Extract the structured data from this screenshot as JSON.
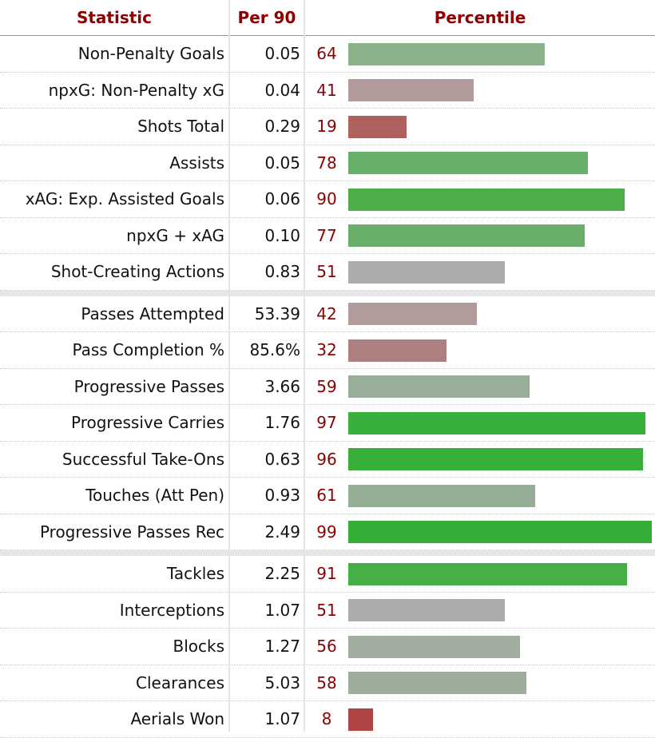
{
  "chart_data": {
    "type": "bar",
    "headers": {
      "statistic": "Statistic",
      "per90": "Per 90",
      "percentile": "Percentile"
    },
    "ylim": [
      0,
      100
    ],
    "groups": [
      {
        "rows": [
          {
            "label": "Non-Penalty Goals",
            "per90": "0.05",
            "percentile": 64,
            "color": "#8cb28c"
          },
          {
            "label": "npxG: Non-Penalty xG",
            "per90": "0.04",
            "percentile": 41,
            "color": "#b19b9b"
          },
          {
            "label": "Shots Total",
            "per90": "0.29",
            "percentile": 19,
            "color": "#ad625e"
          },
          {
            "label": "Assists",
            "per90": "0.05",
            "percentile": 78,
            "color": "#68b06a"
          },
          {
            "label": "xAG: Exp. Assisted Goals",
            "per90": "0.06",
            "percentile": 90,
            "color": "#4cae48"
          },
          {
            "label": "npxG + xAG",
            "per90": "0.10",
            "percentile": 77,
            "color": "#69af68"
          },
          {
            "label": "Shot-Creating Actions",
            "per90": "0.83",
            "percentile": 51,
            "color": "#acacac"
          }
        ]
      },
      {
        "rows": [
          {
            "label": "Passes Attempted",
            "per90": "53.39",
            "percentile": 42,
            "color": "#b09c9b"
          },
          {
            "label": "Pass Completion %",
            "per90": "85.6%",
            "percentile": 32,
            "color": "#ad807f"
          },
          {
            "label": "Progressive Passes",
            "per90": "3.66",
            "percentile": 59,
            "color": "#98ae98"
          },
          {
            "label": "Progressive Carries",
            "per90": "1.76",
            "percentile": 97,
            "color": "#39b03b"
          },
          {
            "label": "Successful Take-Ons",
            "per90": "0.63",
            "percentile": 96,
            "color": "#39af3b"
          },
          {
            "label": "Touches (Att Pen)",
            "per90": "0.93",
            "percentile": 61,
            "color": "#95ae95"
          },
          {
            "label": "Progressive Passes Rec",
            "per90": "2.49",
            "percentile": 99,
            "color": "#35ae37"
          }
        ]
      },
      {
        "rows": [
          {
            "label": "Tackles",
            "per90": "2.25",
            "percentile": 91,
            "color": "#46ae46"
          },
          {
            "label": "Interceptions",
            "per90": "1.07",
            "percentile": 51,
            "color": "#acacac"
          },
          {
            "label": "Blocks",
            "per90": "1.27",
            "percentile": 56,
            "color": "#a0ad9f"
          },
          {
            "label": "Clearances",
            "per90": "5.03",
            "percentile": 58,
            "color": "#9cae9b"
          },
          {
            "label": "Aerials Won",
            "per90": "1.07",
            "percentile": 8,
            "color": "#ae4444"
          }
        ]
      }
    ]
  }
}
